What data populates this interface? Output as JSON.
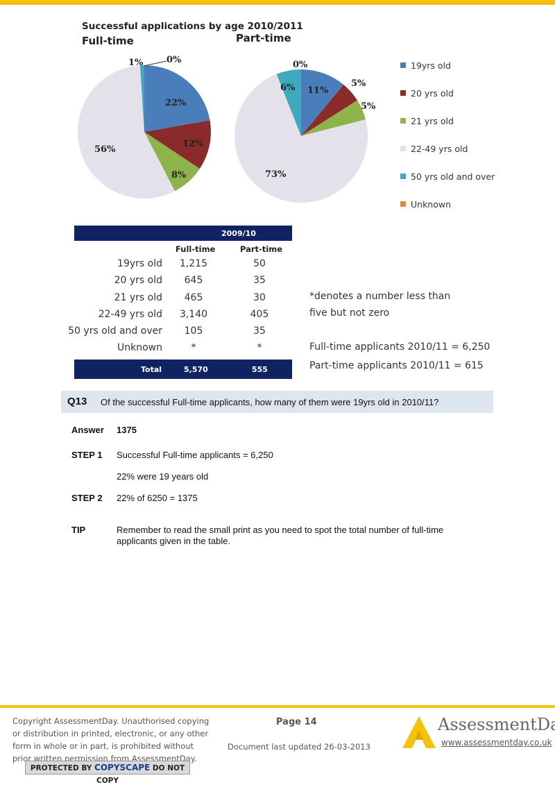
{
  "chart": {
    "title": "Successful applications by age  2010/2011",
    "fulltime_label": "Full-time",
    "parttime_label": "Part-time",
    "fulltime_pct_labels": [
      "1%",
      "0%",
      "22%",
      "12%",
      "8%",
      "56%"
    ],
    "parttime_pct_labels": [
      "0%",
      "6%",
      "11%",
      "5%",
      "5%",
      "73%"
    ]
  },
  "chart_data": {
    "type": "pie",
    "title": "Successful applications by age  2010/2011",
    "categories": [
      "19yrs old",
      "20 yrs old",
      "21 yrs old",
      "22-49 yrs old",
      "50 yrs old and over",
      "Unknown"
    ],
    "colors": [
      "#4a7ebb",
      "#8b2a2a",
      "#8eb34a",
      "#e4e1ea",
      "#3fa9bd",
      "#e8893a"
    ],
    "series": [
      {
        "name": "Full-time",
        "values": [
          22,
          12,
          8,
          56,
          1,
          0
        ]
      },
      {
        "name": "Part-time",
        "values": [
          11,
          5,
          5,
          73,
          6,
          0
        ]
      }
    ],
    "legend_position": "right"
  },
  "legend": [
    "19yrs old",
    "20 yrs old",
    "21 yrs old",
    "22-49 yrs old",
    "50 yrs old and over",
    "Unknown"
  ],
  "table": {
    "year": "2009/10",
    "col_fulltime": "Full-time",
    "col_parttime": "Part-time",
    "rows": [
      {
        "label": "19yrs old",
        "ft": "1,215",
        "pt": "50"
      },
      {
        "label": "20 yrs old",
        "ft": "645",
        "pt": "35"
      },
      {
        "label": "21 yrs old",
        "ft": "465",
        "pt": "30"
      },
      {
        "label": "22-49 yrs old",
        "ft": "3,140",
        "pt": "405"
      },
      {
        "label": "50 yrs old and over",
        "ft": "105",
        "pt": "35"
      },
      {
        "label": "Unknown",
        "ft": "*",
        "pt": "*"
      }
    ],
    "total_label": "Total",
    "total_ft": "5,570",
    "total_pt": "555"
  },
  "notes": {
    "line1": "*denotes a number less than",
    "line2": "five but not zero",
    "ft_applicants": "Full-time applicants 2010/11 = 6,250",
    "pt_applicants": "Part-time applicants 2010/11 = 615"
  },
  "question": {
    "number": "Q13",
    "text": "Of the successful Full-time applicants, how many of them were 19yrs old in 2010/11?"
  },
  "answer": {
    "answer_label": "Answer",
    "answer_value": "1375",
    "step1_label": "STEP 1",
    "step1_line1": "Successful Full-time applicants = 6,250",
    "step1_line2": "22% were 19 years old",
    "step2_label": "STEP 2",
    "step2_text": "22% of 6250 = 1375",
    "tip_label": "TIP",
    "tip_line1": "Remember to read the small print as you need to spot the total number of full-time",
    "tip_line2": "applicants given in the table."
  },
  "footer": {
    "copyright": [
      "Copyright AssessmentDay. Unauthorised copying",
      "or distribution in printed, electronic, or any other",
      "form in whole or in part, is prohibited without",
      "prior written permission from AssessmentDay."
    ],
    "copyscape_pre": "PROTECTED BY ",
    "copyscape_brand": "COPYSCAPE",
    "copyscape_post": " DO NOT COPY",
    "page": "Page 14",
    "updated": "Document last updated 26-03-2013",
    "brand": "AssessmentDay",
    "website": "www.assessmentday.co.uk"
  }
}
